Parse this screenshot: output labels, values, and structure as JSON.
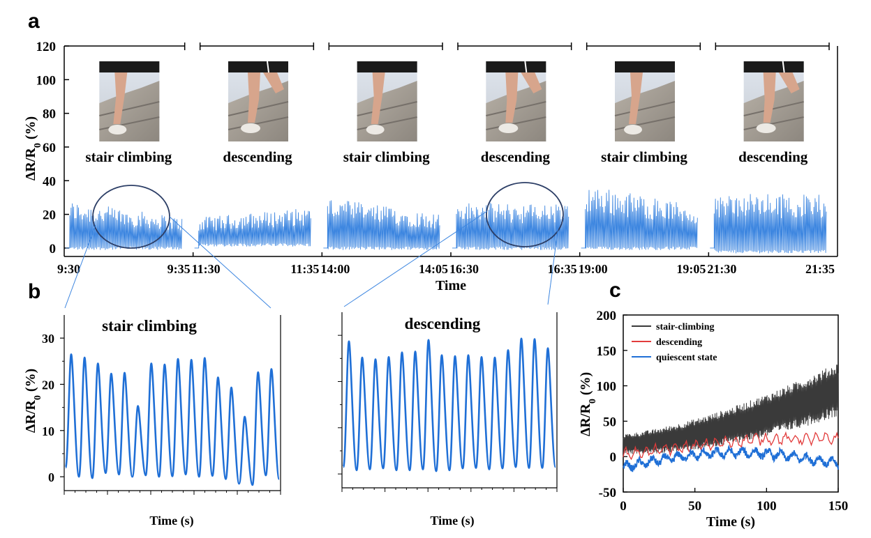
{
  "panel_labels": {
    "a": "a",
    "b": "b",
    "c": "c"
  },
  "chart_data": [
    {
      "id": "a",
      "type": "line",
      "ylabel": "ΔR/R",
      "ylabel_sub": "0",
      "ylabel_unit": " (%)",
      "xlabel": "Time",
      "ylim": [
        -5,
        120
      ],
      "yticks": [
        "0",
        "20",
        "40",
        "60",
        "80",
        "100",
        "120"
      ],
      "color": "#3d86e0",
      "segments": [
        {
          "activity": "stair climbing",
          "start": "9:30",
          "end": "9:35",
          "mode": "climb",
          "low": 0,
          "high": 28,
          "high_end": 18
        },
        {
          "activity": "descending",
          "start": "11:30",
          "end": "11:35",
          "mode": "desc",
          "low": 2,
          "high": 18,
          "high_end": 24
        },
        {
          "activity": "stair climbing",
          "start": "14:00",
          "end": "14:05",
          "mode": "climb",
          "low": 0,
          "high": 30,
          "high_end": 20
        },
        {
          "activity": "descending",
          "start": "16:30",
          "end": "16:35",
          "mode": "desc",
          "low": 0,
          "high": 27,
          "high_end": 26
        },
        {
          "activity": "stair climbing",
          "start": "19:00",
          "end": "19:05",
          "mode": "climb",
          "low": 0,
          "high": 38,
          "high_end": 25
        },
        {
          "activity": "descending",
          "start": "21:30",
          "end": "21:35",
          "mode": "desc",
          "low": -2,
          "high": 32,
          "high_end": 32
        }
      ]
    },
    {
      "id": "b-left",
      "type": "line",
      "title": "stair climbing",
      "ylabel": "ΔR/R",
      "ylabel_sub": "0",
      "ylabel_unit": " (%)",
      "xlabel": "Time (s)",
      "ylim": [
        -3,
        35
      ],
      "yticks": [
        "0",
        "10",
        "20",
        "30"
      ],
      "color": "#1f6fd6",
      "peaks": [
        26.5,
        25.8,
        24.5,
        22.3,
        22.5,
        15.3,
        24.5,
        24.3,
        25.5,
        25.3,
        25.7,
        21.5,
        19.3,
        13.0,
        22.6,
        23.3
      ],
      "troughs": [
        2.0,
        0.0,
        -0.3,
        0.8,
        0.5,
        0.0,
        0.3,
        0.0,
        0.1,
        0.5,
        0.0,
        0.2,
        -0.5,
        -1.5,
        -1.8,
        0.3,
        -0.5
      ]
    },
    {
      "id": "b-right",
      "type": "line",
      "title": "descending",
      "xlabel": "Time (s)",
      "ylim": [
        -3,
        35
      ],
      "color": "#1f6fd6",
      "peaks": [
        28.7,
        25.2,
        24.8,
        25.3,
        26.3,
        26.5,
        29.0,
        25.7,
        25.5,
        25.7,
        25.3,
        25.2,
        26.8,
        29.3,
        29.2,
        27.2
      ],
      "troughs": [
        1.5,
        0.8,
        1.0,
        1.2,
        0.8,
        0.8,
        1.0,
        0.6,
        0.8,
        1.2,
        1.3,
        1.0,
        1.2,
        1.5,
        1.3,
        1.3,
        1.5
      ]
    },
    {
      "id": "c",
      "type": "line",
      "xlabel": "Time (s)",
      "ylabel": "ΔR/R",
      "ylabel_sub": "0",
      "ylabel_unit": " (%)",
      "xlim": [
        0,
        150
      ],
      "ylim": [
        -50,
        200
      ],
      "xticks": [
        "0",
        "50",
        "100",
        "150"
      ],
      "yticks": [
        "-50",
        "0",
        "50",
        "100",
        "150",
        "200"
      ],
      "series": [
        {
          "name": "stair-climbing",
          "color": "#3a3a3a",
          "start_mid": 18,
          "end_mid": 95,
          "amp_start": 14,
          "amp_end": 38
        },
        {
          "name": "descending",
          "color": "#e23b3b",
          "start_mid": 3,
          "end_mid": 25
        },
        {
          "name": "quiescent state",
          "color": "#1f6fd6",
          "start_mid": -15,
          "end_mid": -10
        }
      ]
    }
  ]
}
